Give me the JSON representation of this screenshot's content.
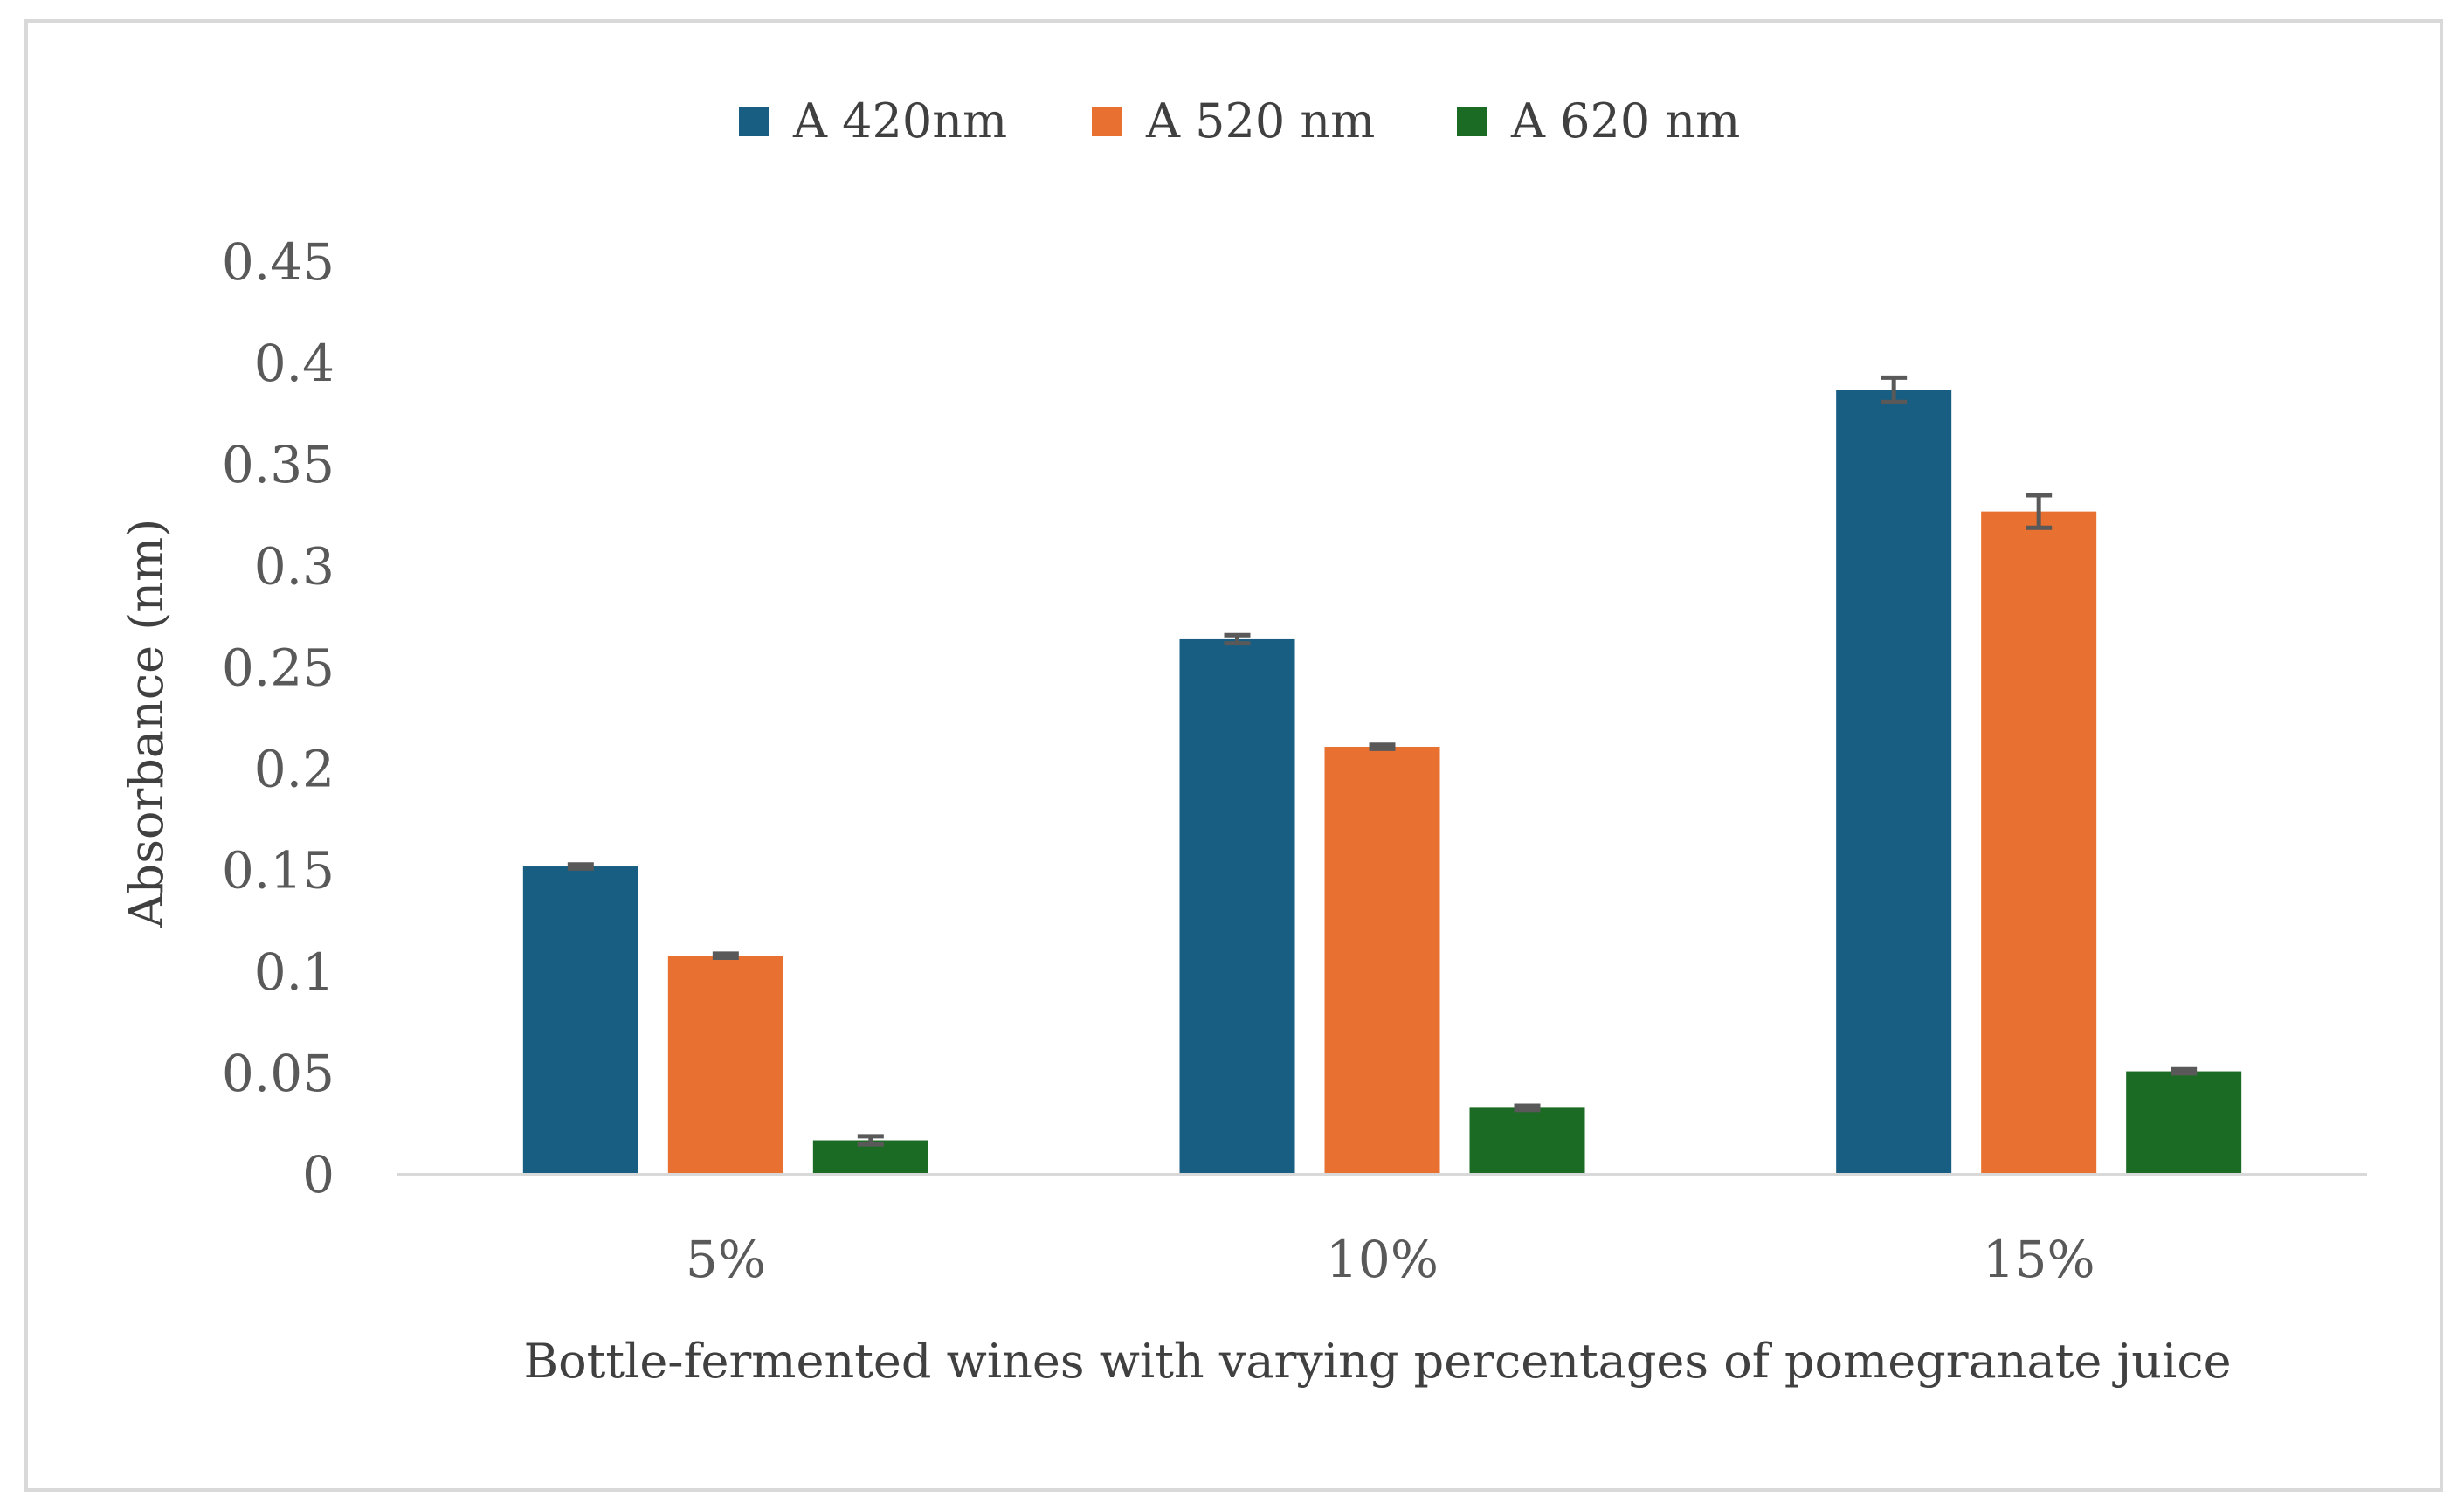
{
  "chart_data": {
    "type": "bar",
    "title": "",
    "xlabel": "Bottle-fermented wines with varying percentages of pomegranate juice",
    "ylabel": "Absorbance (nm)",
    "categories": [
      "5%",
      "10%",
      "15%"
    ],
    "yticks": [
      "0",
      "0.05",
      "0.1",
      "0.15",
      "0.2",
      "0.25",
      "0.3",
      "0.35",
      "0.4",
      "0.45"
    ],
    "ylim": [
      0,
      0.45
    ],
    "grid": false,
    "legend_position": "top",
    "series": [
      {
        "name": "A 420nm",
        "color": "#175E82",
        "values": [
          0.152,
          0.264,
          0.387
        ],
        "errors": [
          0.001,
          0.002,
          0.006
        ]
      },
      {
        "name": "A 520 nm",
        "color": "#E87131",
        "values": [
          0.108,
          0.211,
          0.327
        ],
        "errors": [
          0.001,
          0.001,
          0.008
        ]
      },
      {
        "name": "A 620 nm",
        "color": "#1C6B25",
        "values": [
          0.017,
          0.033,
          0.051
        ],
        "errors": [
          0.002,
          0.001,
          0.001
        ]
      }
    ],
    "error_bar_color": "#595959",
    "axis_color": "#d9d9d9",
    "frame_color": "#d9d9d9"
  }
}
